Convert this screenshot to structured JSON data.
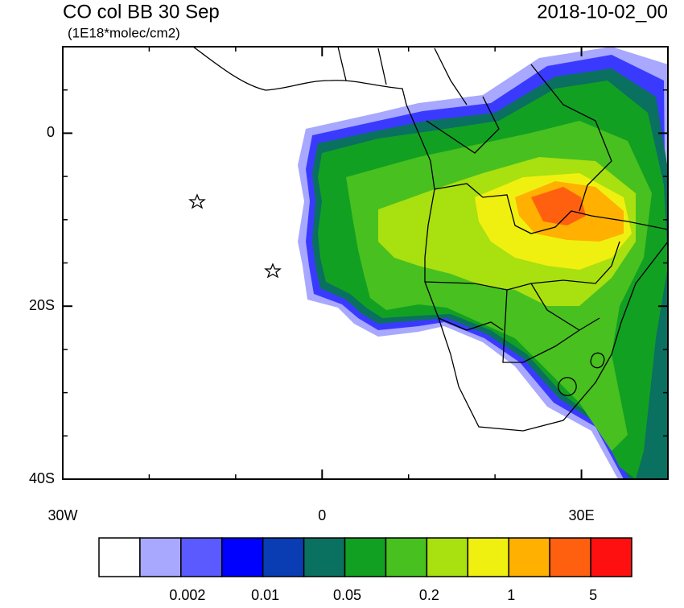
{
  "header": {
    "title": "CO col BB 30 Sep",
    "units": "(1E18*molec/cm2)",
    "date": "2018-10-02_00"
  },
  "map": {
    "lonlim": [
      -30,
      40
    ],
    "latlim": [
      -40,
      10
    ],
    "lat_ticks": [
      {
        "value": 0,
        "label": "0"
      },
      {
        "value": -20,
        "label": "20S"
      },
      {
        "value": -40,
        "label": "40S"
      }
    ],
    "lat_minor": [
      5,
      -5,
      -10,
      -15,
      -25,
      -30,
      -35
    ],
    "lon_ticks": [
      {
        "value": -30,
        "label": "30W"
      },
      0,
      {
        "value": 30,
        "label": "30E"
      }
    ],
    "lon_minor": [
      -20,
      -10,
      10,
      20,
      40
    ]
  },
  "colorbar": {
    "colors": [
      "#ffffff",
      "#a8a8ff",
      "#5a5aff",
      "#0000ff",
      "#0a3cb4",
      "#0a7060",
      "#12a022",
      "#48c020",
      "#a8e010",
      "#f0f010",
      "#ffb000",
      "#ff6010",
      "#ff1010"
    ],
    "labels": [
      "0.002",
      "0.01",
      "0.05",
      "0.2",
      "1",
      "5"
    ]
  }
}
